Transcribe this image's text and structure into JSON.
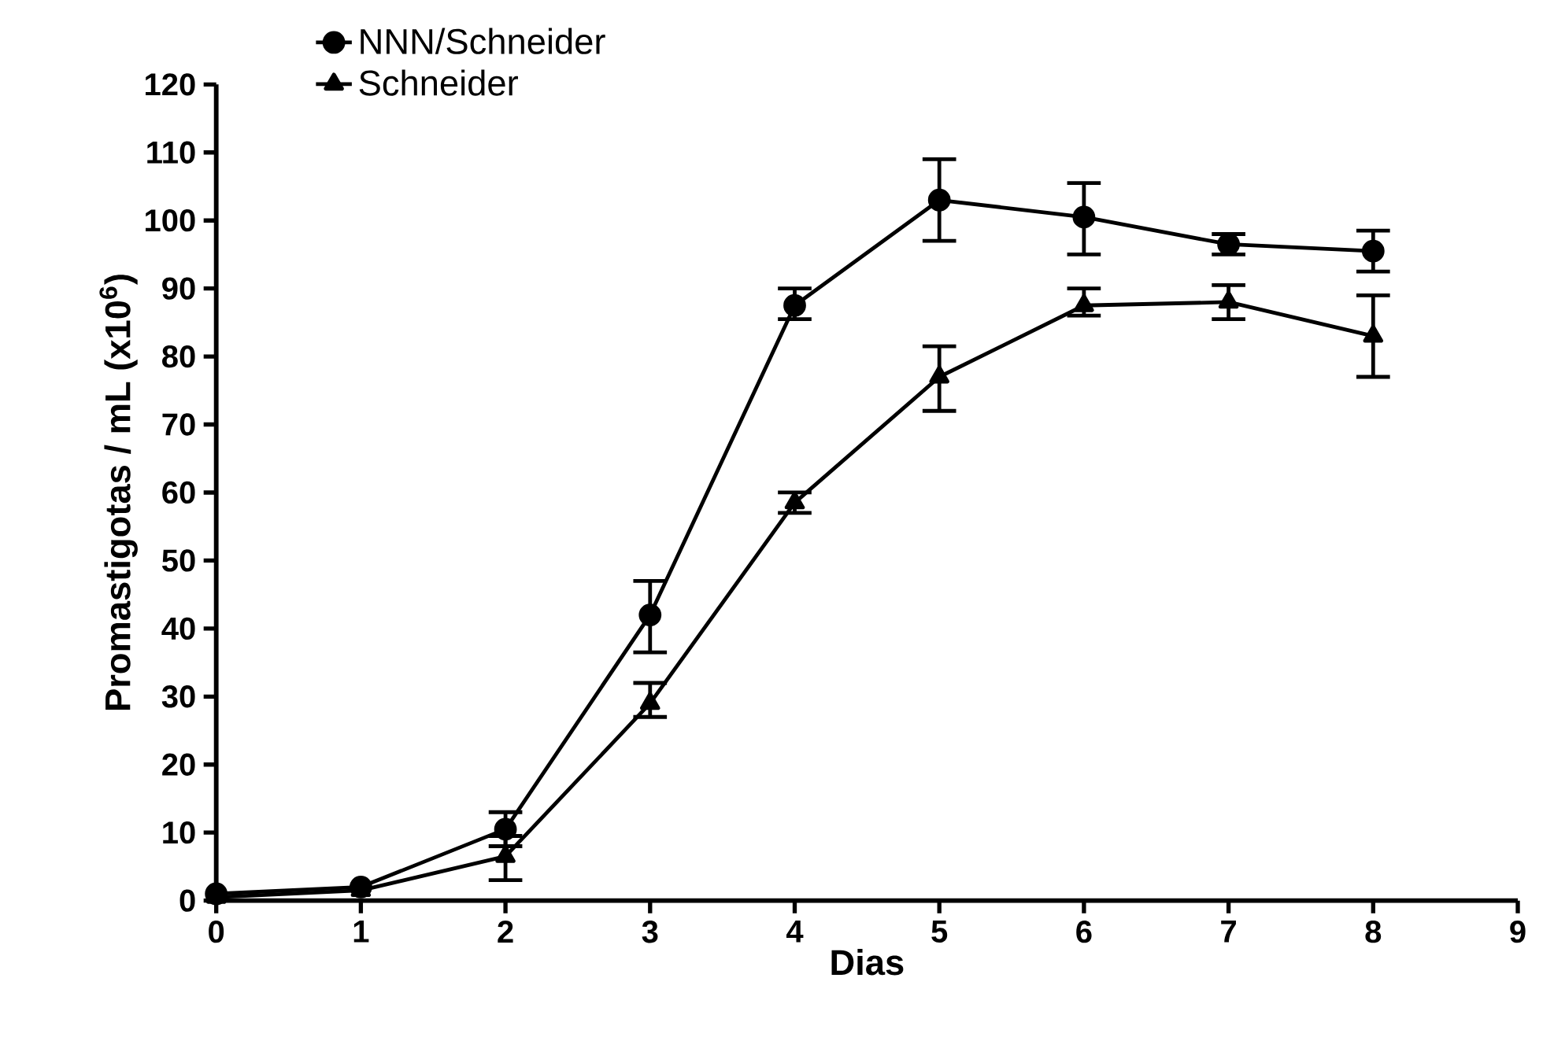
{
  "chart_data": {
    "type": "line",
    "xlabel": "Dias",
    "ylabel": "Promastigotas / mL (x10$^{6}$)",
    "x": [
      0,
      1,
      2,
      3,
      4,
      5,
      6,
      7,
      8
    ],
    "xlim": [
      0,
      9
    ],
    "xticks": [
      0,
      1,
      2,
      3,
      4,
      5,
      6,
      7,
      8,
      9
    ],
    "ylim": [
      0,
      120
    ],
    "yticks": [
      0,
      10,
      20,
      30,
      40,
      50,
      60,
      70,
      80,
      90,
      100,
      110,
      120
    ],
    "grid": false,
    "legend": "top left",
    "line_style": "solid",
    "series": [
      {
        "name": "NNN/Schneider",
        "color": "#000000",
        "marker": "circle",
        "values": [
          1,
          2,
          10.5,
          42,
          87.5,
          103,
          100.5,
          96.5,
          95.5
        ],
        "errors": [
          null,
          null,
          [
            8,
            13
          ],
          [
            36.5,
            47
          ],
          [
            85.5,
            90
          ],
          [
            97,
            109
          ],
          [
            95,
            105.5
          ],
          [
            95,
            98
          ],
          [
            92.5,
            98.5
          ]
        ]
      },
      {
        "name": "Schneider",
        "color": "#000000",
        "marker": "triangle",
        "values": [
          0.5,
          1.5,
          6.5,
          29,
          58.5,
          77,
          87.5,
          88,
          83
        ],
        "errors": [
          null,
          null,
          [
            3,
            9.5
          ],
          [
            27,
            32
          ],
          [
            57,
            60
          ],
          [
            72,
            81.5
          ],
          [
            86,
            90
          ],
          [
            85.5,
            90.5
          ],
          [
            77,
            89
          ]
        ]
      }
    ]
  }
}
